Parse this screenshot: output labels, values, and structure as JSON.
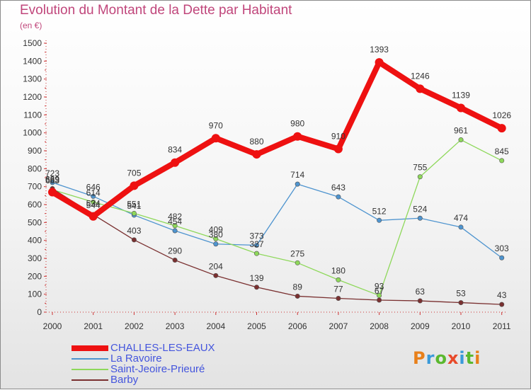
{
  "title": "Evolution du Montant de la Dette par Habitant",
  "subtitle": "(en €)",
  "logo_text": "Proxiti",
  "logo_colors": [
    "#e8801a",
    "#3a9ad9",
    "#5ab82e",
    "#e84a2a",
    "#3a9ad9",
    "#5ab82e",
    "#e8801a"
  ],
  "chart_data": {
    "type": "line",
    "x": [
      "2000",
      "2001",
      "2002",
      "2003",
      "2004",
      "2005",
      "2006",
      "2007",
      "2008",
      "2009",
      "2010",
      "2011"
    ],
    "ylim": [
      0,
      1500
    ],
    "yticks": [
      0,
      100,
      200,
      300,
      400,
      500,
      600,
      700,
      800,
      900,
      1000,
      1100,
      1200,
      1300,
      1400,
      1500
    ],
    "grid": false,
    "legend_position": "bottom-left",
    "series": [
      {
        "name": "CHALLES-LES-EAUX",
        "color": "#ee1111",
        "values": [
          669,
          534,
          705,
          834,
          970,
          880,
          980,
          910,
          1393,
          1246,
          1139,
          1026
        ]
      },
      {
        "name": "La Ravoire",
        "color": "#4e94cf",
        "values": [
          723,
          646,
          541,
          454,
          380,
          373,
          714,
          643,
          512,
          524,
          474,
          303
        ]
      },
      {
        "name": "Saint-Jeoire-Prieuré",
        "color": "#8ed85a",
        "values": [
          683,
          614,
          551,
          482,
          409,
          327,
          275,
          180,
          93,
          755,
          961,
          845
        ]
      },
      {
        "name": "Barby",
        "color": "#7a3030",
        "values": [
          689,
          544,
          403,
          290,
          204,
          139,
          89,
          77,
          67,
          63,
          53,
          43
        ]
      }
    ]
  }
}
